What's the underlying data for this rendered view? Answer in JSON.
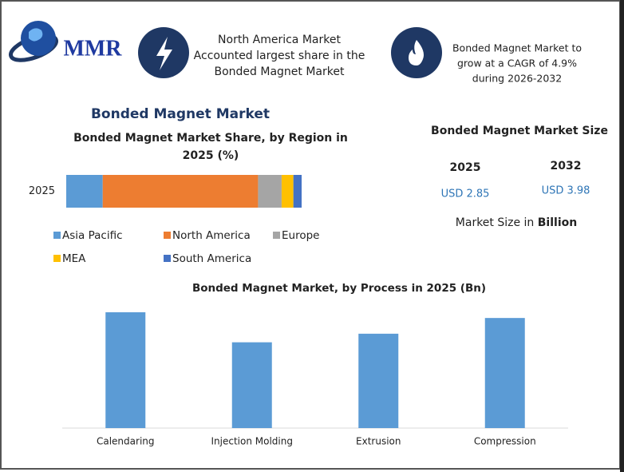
{
  "header": {
    "logo": "MMR",
    "info_left": [
      "North America Market",
      "Accounted largest share in the",
      "Bonded Magnet Market"
    ],
    "info_right": [
      "Bonded Magnet Market to",
      "grow at a CAGR of 4.9%",
      "during 2026-2032"
    ]
  },
  "main_title": "Bonded Magnet Market",
  "market_size": {
    "title": "Bonded Magnet Market Size",
    "years": [
      "2025",
      "2032"
    ],
    "values": [
      "USD 2.85",
      "USD 3.98"
    ],
    "note": "Market Size in ",
    "note_bold": "Billion"
  },
  "chart_data": [
    {
      "type": "stacked_hbar",
      "title": [
        "Bonded Magnet Market Share, by Region in",
        "2025 (%)"
      ],
      "categories": [
        "2025"
      ],
      "series": [
        {
          "name": "Asia Pacific",
          "color": "#5b9bd5",
          "values": [
            15.5
          ]
        },
        {
          "name": "North America",
          "color": "#ed7d31",
          "values": [
            66
          ]
        },
        {
          "name": "Europe",
          "color": "#a5a5a5",
          "values": [
            10
          ]
        },
        {
          "name": "MEA",
          "color": "#ffc000",
          "values": [
            5
          ]
        },
        {
          "name": "South America",
          "color": "#4472c4",
          "values": [
            3.5
          ]
        }
      ]
    },
    {
      "type": "bar",
      "title": "Bonded Magnet Market, by Process in 2025 (Bn)",
      "categories": [
        "Calendaring",
        "Injection Molding",
        "Extrusion",
        "Compression"
      ],
      "values": [
        0.81,
        0.6,
        0.66,
        0.77
      ],
      "color": "#5b9bd5"
    }
  ]
}
